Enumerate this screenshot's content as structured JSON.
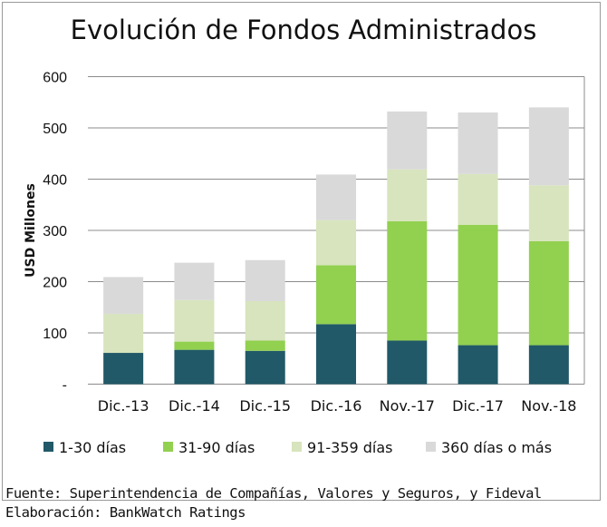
{
  "chart_data": {
    "type": "bar",
    "stacked": true,
    "title": "Evolución de Fondos Administrados",
    "ylabel": "USD Millones",
    "xlabel": "",
    "ylim": [
      0,
      600
    ],
    "yticks": [
      "-",
      "100",
      "200",
      "300",
      "400",
      "500",
      "600"
    ],
    "grid": true,
    "legend_position": "bottom",
    "categories": [
      "Dic.-13",
      "Dic.-14",
      "Dic.-15",
      "Dic.-16",
      "Nov.-17",
      "Dic.-17",
      "Nov.-18"
    ],
    "series": [
      {
        "name": "1-30 días",
        "color": "#215968",
        "values": [
          61,
          67,
          65,
          117,
          85,
          76,
          76
        ]
      },
      {
        "name": "31-90 días",
        "color": "#92D050",
        "values": [
          0,
          16,
          20,
          115,
          233,
          235,
          203
        ]
      },
      {
        "name": "91-359 días",
        "color": "#D7E4BD",
        "values": [
          76,
          81,
          77,
          88,
          101,
          99,
          109
        ]
      },
      {
        "name": "360 días o más",
        "color": "#D9D9D9",
        "values": [
          72,
          73,
          80,
          89,
          113,
          120,
          152
        ]
      }
    ]
  },
  "footer": {
    "source": "Fuente: Superintendencia de Compañías, Valores y Seguros, y Fideval",
    "elaboration": "Elaboración: BankWatch Ratings"
  }
}
